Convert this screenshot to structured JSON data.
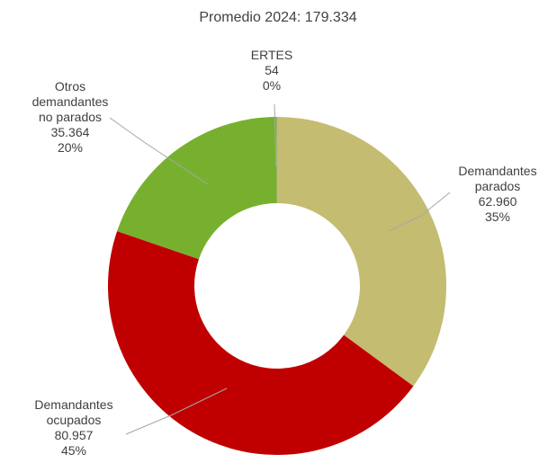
{
  "chart_data": {
    "type": "pie",
    "variant": "donut",
    "title": "Promedio 2024: 179.334",
    "slices": [
      {
        "lines": [
          "Demandantes",
          "parados"
        ],
        "value": 62960,
        "value_label": "62.960",
        "percent_label": "35%",
        "color": "#C4BC71"
      },
      {
        "lines": [
          "Demandantes",
          "ocupados"
        ],
        "value": 80957,
        "value_label": "80.957",
        "percent_label": "45%",
        "color": "#C00000"
      },
      {
        "lines": [
          "Otros",
          "demandantes",
          "no parados"
        ],
        "value": 35364,
        "value_label": "35.364",
        "percent_label": "20%",
        "color": "#77B02F"
      },
      {
        "lines": [
          "ERTES"
        ],
        "value": 54,
        "value_label": "54",
        "percent_label": "0%",
        "color": "#A5A5A5"
      }
    ],
    "legend": "none"
  }
}
